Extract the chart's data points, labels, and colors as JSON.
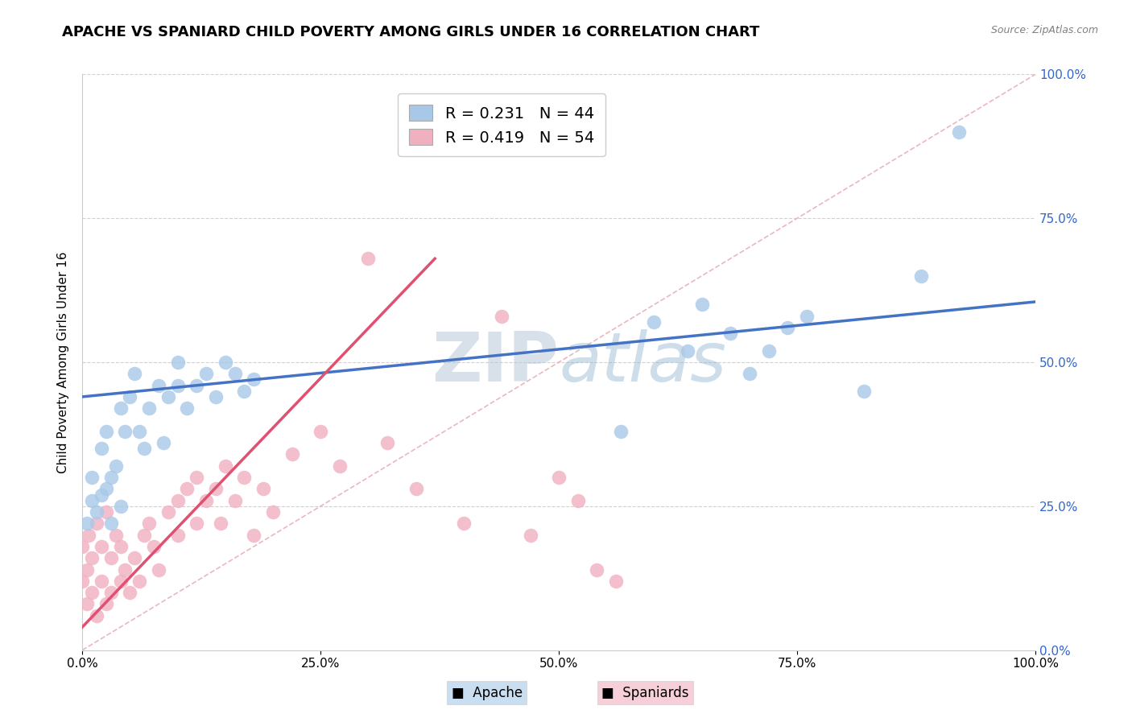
{
  "title": "APACHE VS SPANIARD CHILD POVERTY AMONG GIRLS UNDER 16 CORRELATION CHART",
  "source": "Source: ZipAtlas.com",
  "ylabel": "Child Poverty Among Girls Under 16",
  "apache_R": 0.231,
  "apache_N": 44,
  "spaniard_R": 0.419,
  "spaniard_N": 54,
  "apache_color": "#A8C8E8",
  "spaniard_color": "#F0B0C0",
  "apache_trend_color": "#4472C4",
  "spaniard_trend_color": "#E05070",
  "diag_color": "#E8B0B8",
  "watermark": "ZIPatlas",
  "xlim": [
    0,
    1
  ],
  "ylim": [
    0,
    1
  ],
  "xticks": [
    0.0,
    0.25,
    0.5,
    0.75,
    1.0
  ],
  "yticks": [
    0.0,
    0.25,
    0.5,
    0.75,
    1.0
  ],
  "apache_x": [
    0.005,
    0.01,
    0.01,
    0.015,
    0.02,
    0.02,
    0.025,
    0.025,
    0.03,
    0.03,
    0.035,
    0.04,
    0.04,
    0.045,
    0.05,
    0.055,
    0.06,
    0.065,
    0.07,
    0.08,
    0.085,
    0.09,
    0.1,
    0.1,
    0.11,
    0.12,
    0.13,
    0.14,
    0.15,
    0.16,
    0.17,
    0.18,
    0.565,
    0.6,
    0.635,
    0.65,
    0.68,
    0.7,
    0.72,
    0.74,
    0.76,
    0.82,
    0.88,
    0.92
  ],
  "apache_y": [
    0.22,
    0.26,
    0.3,
    0.24,
    0.27,
    0.35,
    0.28,
    0.38,
    0.3,
    0.22,
    0.32,
    0.42,
    0.25,
    0.38,
    0.44,
    0.48,
    0.38,
    0.35,
    0.42,
    0.46,
    0.36,
    0.44,
    0.5,
    0.46,
    0.42,
    0.46,
    0.48,
    0.44,
    0.5,
    0.48,
    0.45,
    0.47,
    0.38,
    0.57,
    0.52,
    0.6,
    0.55,
    0.48,
    0.52,
    0.56,
    0.58,
    0.45,
    0.65,
    0.9
  ],
  "spaniard_x": [
    0.0,
    0.0,
    0.005,
    0.005,
    0.007,
    0.01,
    0.01,
    0.015,
    0.015,
    0.02,
    0.02,
    0.025,
    0.025,
    0.03,
    0.03,
    0.035,
    0.04,
    0.04,
    0.045,
    0.05,
    0.055,
    0.06,
    0.065,
    0.07,
    0.075,
    0.08,
    0.09,
    0.1,
    0.1,
    0.11,
    0.12,
    0.12,
    0.13,
    0.14,
    0.145,
    0.15,
    0.16,
    0.17,
    0.18,
    0.19,
    0.2,
    0.22,
    0.25,
    0.27,
    0.3,
    0.32,
    0.35,
    0.4,
    0.44,
    0.47,
    0.5,
    0.52,
    0.54,
    0.56
  ],
  "spaniard_y": [
    0.12,
    0.18,
    0.08,
    0.14,
    0.2,
    0.1,
    0.16,
    0.06,
    0.22,
    0.12,
    0.18,
    0.08,
    0.24,
    0.1,
    0.16,
    0.2,
    0.12,
    0.18,
    0.14,
    0.1,
    0.16,
    0.12,
    0.2,
    0.22,
    0.18,
    0.14,
    0.24,
    0.26,
    0.2,
    0.28,
    0.22,
    0.3,
    0.26,
    0.28,
    0.22,
    0.32,
    0.26,
    0.3,
    0.2,
    0.28,
    0.24,
    0.34,
    0.38,
    0.32,
    0.68,
    0.36,
    0.28,
    0.22,
    0.58,
    0.2,
    0.3,
    0.26,
    0.14,
    0.12
  ],
  "legend_apache": "Apache",
  "legend_spaniard": "Spaniards",
  "title_fontsize": 13,
  "label_fontsize": 11,
  "tick_fontsize": 11,
  "legend_fontsize": 14,
  "apache_trend_x0": 0.0,
  "apache_trend_x1": 1.0,
  "apache_trend_y0": 0.44,
  "apache_trend_y1": 0.605,
  "spaniard_trend_x0": 0.0,
  "spaniard_trend_x1": 0.37,
  "spaniard_trend_y0": 0.04,
  "spaniard_trend_y1": 0.68
}
